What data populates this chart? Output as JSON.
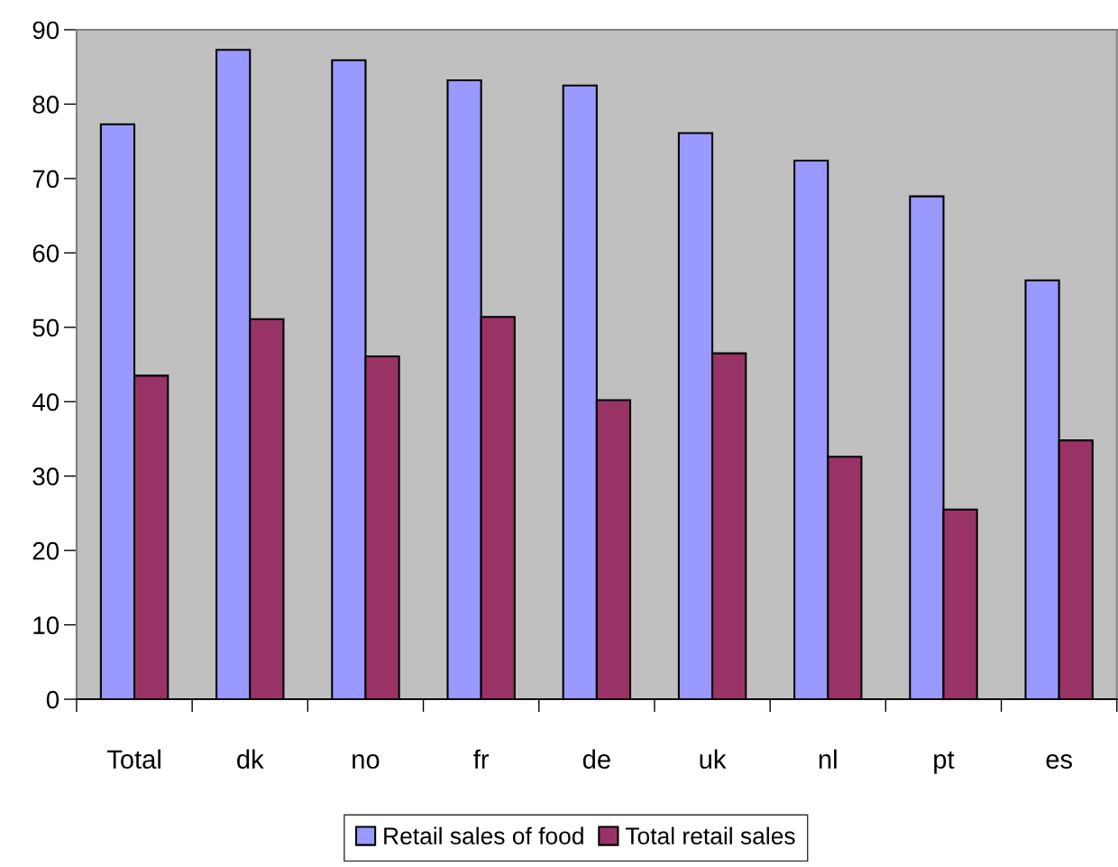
{
  "chart_data": {
    "type": "bar",
    "categories": [
      "Total",
      "dk",
      "no",
      "fr",
      "de",
      "uk",
      "nl",
      "pt",
      "es"
    ],
    "series": [
      {
        "name": "Retail sales of food",
        "color": "#9999ff",
        "values": [
          77.3,
          87.3,
          85.9,
          83.2,
          82.5,
          76.1,
          72.4,
          67.6,
          56.3
        ]
      },
      {
        "name": "Total retail sales",
        "color": "#993366",
        "values": [
          43.5,
          51.1,
          46.1,
          51.4,
          40.2,
          46.5,
          32.6,
          25.5,
          34.8
        ]
      }
    ],
    "ylim": [
      0,
      90
    ],
    "yticks": [
      0,
      10,
      20,
      30,
      40,
      50,
      60,
      70,
      80,
      90
    ],
    "grid": false,
    "legend": "bottom"
  }
}
